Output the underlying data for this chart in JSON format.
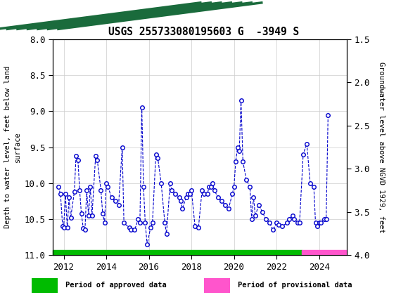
{
  "title": "USGS 255733080195603 G  -3949 S",
  "ylabel_left": "Depth to water level, feet below land\nsurface",
  "ylabel_right": "Groundwater level above NGVD 1929, feet",
  "ylim_left": [
    8.0,
    11.0
  ],
  "ylim_right": [
    4.0,
    1.5
  ],
  "header_color": "#1a6b3c",
  "line_color": "#0000cc",
  "marker_color": "#0000cc",
  "approved_color": "#00bb00",
  "provisional_color": "#ff55cc",
  "dates": [
    2011.75,
    2011.85,
    2011.95,
    2012.0,
    2012.08,
    2012.17,
    2012.25,
    2012.33,
    2012.5,
    2012.58,
    2012.67,
    2012.75,
    2012.83,
    2012.92,
    2013.0,
    2013.08,
    2013.17,
    2013.25,
    2013.33,
    2013.5,
    2013.58,
    2013.75,
    2013.83,
    2013.92,
    2014.0,
    2014.08,
    2014.25,
    2014.42,
    2014.58,
    2014.75,
    2014.83,
    2015.08,
    2015.17,
    2015.33,
    2015.5,
    2015.58,
    2015.67,
    2015.75,
    2015.83,
    2015.92,
    2016.08,
    2016.17,
    2016.33,
    2016.42,
    2016.58,
    2016.75,
    2016.83,
    2017.0,
    2017.08,
    2017.25,
    2017.42,
    2017.5,
    2017.58,
    2017.75,
    2017.83,
    2017.92,
    2018.0,
    2018.17,
    2018.33,
    2018.5,
    2018.58,
    2018.75,
    2018.83,
    2018.92,
    2019.0,
    2019.08,
    2019.25,
    2019.42,
    2019.58,
    2019.75,
    2019.92,
    2020.0,
    2020.08,
    2020.17,
    2020.25,
    2020.33,
    2020.42,
    2020.58,
    2020.75,
    2020.83,
    2020.92,
    2021.0,
    2021.17,
    2021.33,
    2021.5,
    2021.67,
    2021.83,
    2022.0,
    2022.08,
    2022.25,
    2022.5,
    2022.58,
    2022.75,
    2022.83,
    2023.0,
    2023.08,
    2023.25,
    2023.42,
    2023.58,
    2023.75,
    2023.83,
    2023.92,
    2024.0,
    2024.08,
    2024.25,
    2024.33,
    2024.42
  ],
  "values": [
    10.05,
    10.15,
    10.6,
    10.62,
    10.15,
    10.62,
    10.2,
    10.48,
    10.12,
    9.62,
    9.68,
    10.1,
    10.42,
    10.63,
    10.65,
    10.1,
    10.45,
    10.05,
    10.45,
    9.62,
    9.68,
    10.1,
    10.42,
    10.55,
    10.0,
    10.05,
    10.2,
    10.25,
    10.3,
    9.5,
    10.55,
    10.62,
    10.65,
    10.65,
    10.5,
    10.55,
    8.95,
    10.05,
    10.55,
    10.85,
    10.62,
    10.55,
    9.6,
    9.65,
    10.0,
    10.55,
    10.7,
    10.0,
    10.1,
    10.15,
    10.2,
    10.25,
    10.35,
    10.2,
    10.15,
    10.15,
    10.1,
    10.6,
    10.62,
    10.1,
    10.15,
    10.15,
    10.05,
    10.05,
    10.0,
    10.1,
    10.2,
    10.25,
    10.3,
    10.35,
    10.15,
    10.05,
    9.7,
    9.5,
    9.55,
    8.85,
    9.7,
    9.95,
    10.05,
    10.5,
    10.2,
    10.45,
    10.3,
    10.4,
    10.5,
    10.55,
    10.65,
    10.55,
    10.58,
    10.6,
    10.55,
    10.5,
    10.45,
    10.5,
    10.55,
    10.55,
    9.6,
    9.45,
    10.0,
    10.05,
    10.55,
    10.6,
    10.55,
    10.55,
    10.5,
    10.5,
    9.05
  ],
  "approved_start": 2011.5,
  "approved_end": 2023.2,
  "provisional_start": 2023.2,
  "provisional_end": 2025.3,
  "xlim": [
    2011.5,
    2025.3
  ],
  "xticks": [
    2012,
    2014,
    2016,
    2018,
    2020,
    2022,
    2024
  ],
  "yticks_left": [
    8.0,
    8.5,
    9.0,
    9.5,
    10.0,
    10.5,
    11.0
  ],
  "yticks_right": [
    4.0,
    3.5,
    3.0,
    2.5,
    2.0,
    1.5
  ]
}
